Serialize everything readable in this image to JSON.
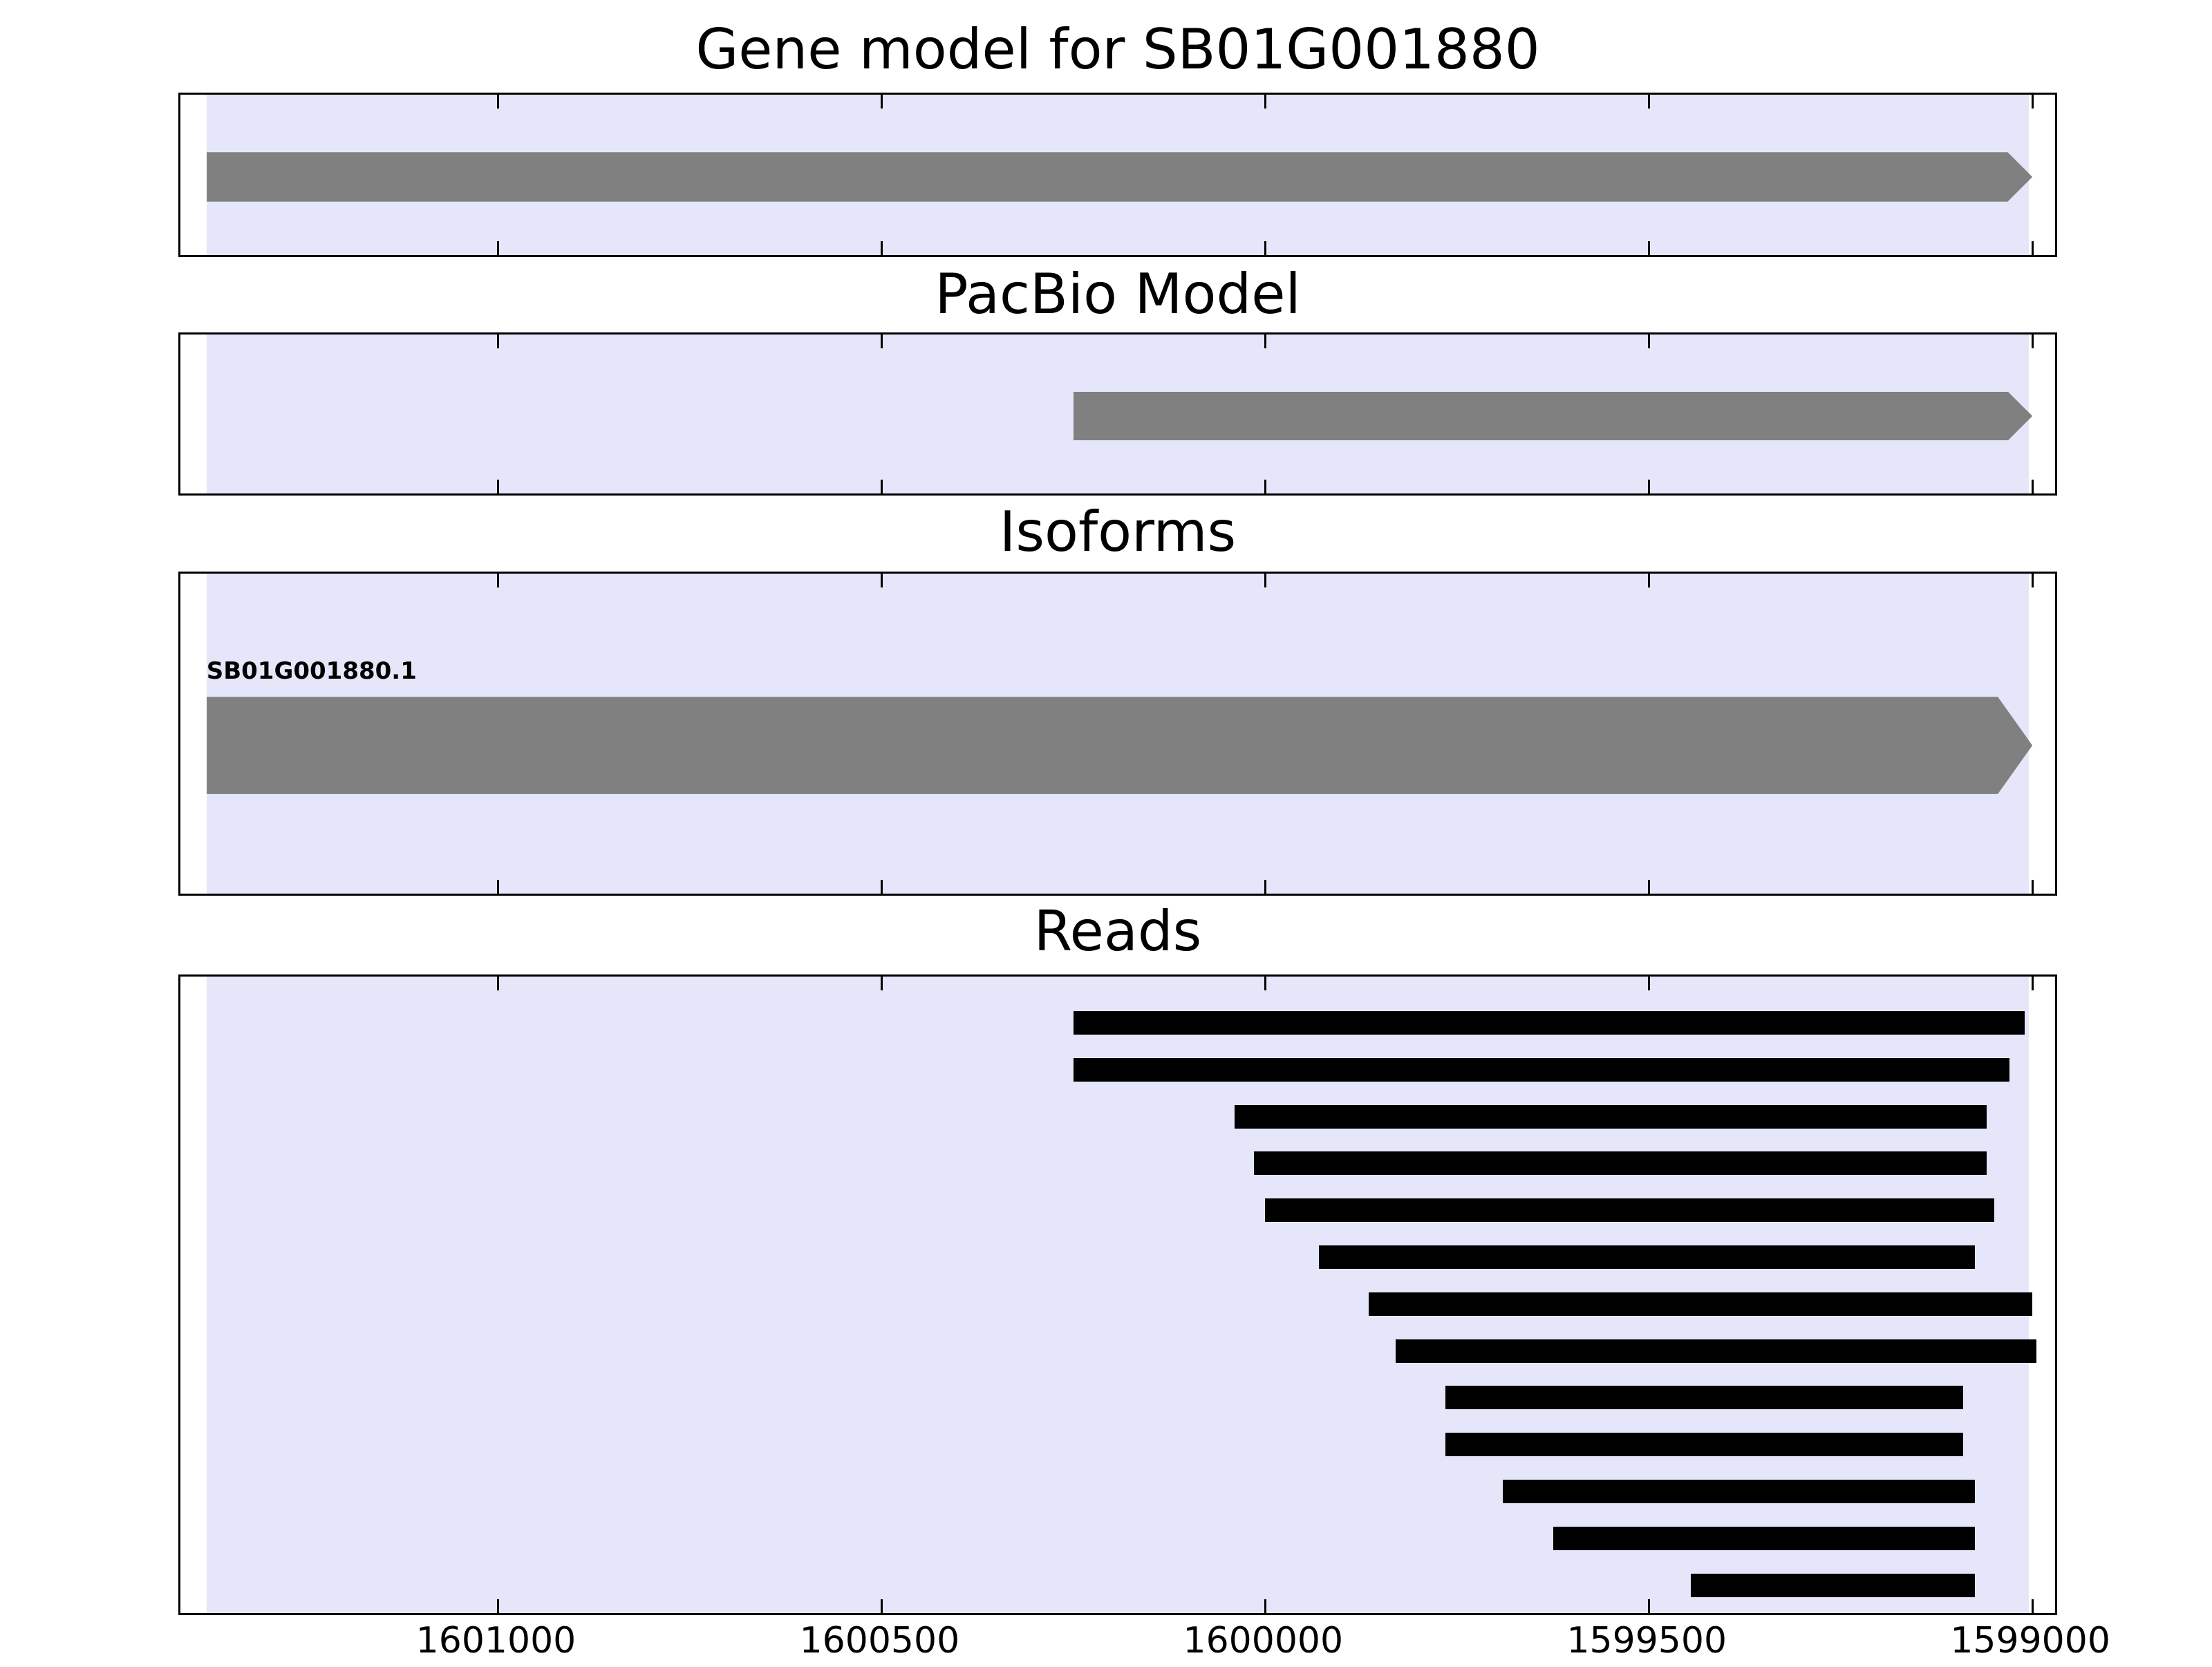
{
  "figure": {
    "background": "#ffffff"
  },
  "chart_data": {
    "type": "gene-model-tracks",
    "title": "Gene model for SB01G001880",
    "axis": {
      "range": [
        1601414,
        1598965
      ],
      "ticks": [
        1601000,
        1600500,
        1600000,
        1599500,
        1599000
      ],
      "tick_labels": [
        "1601000",
        "1600500",
        "1600000",
        "1599500",
        "1599000"
      ],
      "reversed": true,
      "grid": false
    },
    "highlight_region": [
      1601380,
      1599005
    ],
    "colors": {
      "panel_background": "#e6e6fa",
      "feature": "#808080",
      "read": "#000000",
      "border": "#000000"
    },
    "panels": [
      {
        "title": "Gene model for SB01G001880",
        "features": [
          {
            "kind": "arrow",
            "start": 1601380,
            "end": 1599000,
            "direction": "right",
            "cy": 0.5
          }
        ]
      },
      {
        "title": "PacBio Model",
        "features": [
          {
            "kind": "arrow",
            "start": 1600250,
            "end": 1599000,
            "direction": "right",
            "cy": 0.5
          }
        ]
      },
      {
        "title": "Isoforms",
        "features": [
          {
            "kind": "arrow",
            "start": 1601380,
            "end": 1599000,
            "direction": "right",
            "cy": 0.53,
            "label": "SB01G001880.1"
          }
        ]
      },
      {
        "title": "Reads",
        "reads": [
          [
            1600250,
            1599010
          ],
          [
            1600250,
            1599030
          ],
          [
            1600040,
            1599060
          ],
          [
            1600015,
            1599060
          ],
          [
            1600000,
            1599050
          ],
          [
            1599930,
            1599075
          ],
          [
            1599865,
            1599000
          ],
          [
            1599830,
            1598995
          ],
          [
            1599765,
            1599090
          ],
          [
            1599765,
            1599090
          ],
          [
            1599690,
            1599075
          ],
          [
            1599625,
            1599075
          ],
          [
            1599445,
            1599075
          ]
        ]
      }
    ]
  }
}
